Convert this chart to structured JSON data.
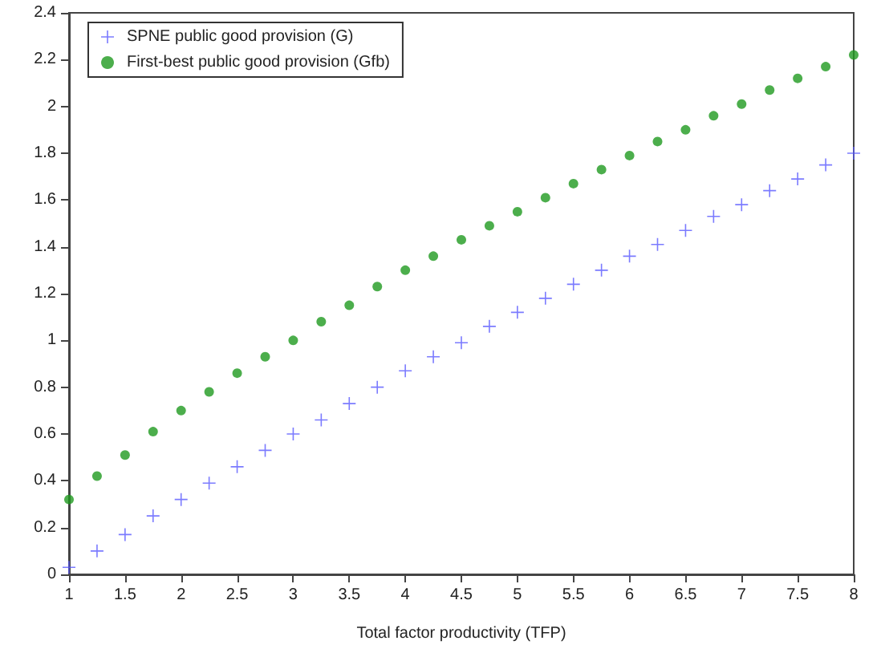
{
  "chart_data": {
    "type": "scatter",
    "xlabel": "Total factor productivity (TFP)",
    "x": [
      1,
      1.25,
      1.5,
      1.75,
      2,
      2.25,
      2.5,
      2.75,
      3,
      3.25,
      3.5,
      3.75,
      4,
      4.25,
      4.5,
      4.75,
      5,
      5.25,
      5.5,
      5.75,
      6,
      6.25,
      6.5,
      6.75,
      7,
      7.25,
      7.5,
      7.75,
      8
    ],
    "series": [
      {
        "name": "SPNE public good provision (G)",
        "color": "#5a5aff",
        "marker": "cross",
        "values": [
          0.03,
          0.1,
          0.17,
          0.25,
          0.32,
          0.39,
          0.46,
          0.53,
          0.6,
          0.66,
          0.73,
          0.8,
          0.87,
          0.93,
          0.99,
          1.06,
          1.12,
          1.18,
          1.24,
          1.3,
          1.36,
          1.41,
          1.47,
          1.53,
          1.58,
          1.64,
          1.69,
          1.75,
          1.8
        ]
      },
      {
        "name": "First-best public good provision (Gfb)",
        "color": "#1f9a1f",
        "marker": "circle",
        "values": [
          0.32,
          0.42,
          0.51,
          0.61,
          0.7,
          0.78,
          0.86,
          0.93,
          1.0,
          1.08,
          1.15,
          1.23,
          1.3,
          1.36,
          1.43,
          1.49,
          1.55,
          1.61,
          1.67,
          1.73,
          1.79,
          1.85,
          1.9,
          1.96,
          2.01,
          2.07,
          2.12,
          2.17,
          2.22
        ]
      }
    ],
    "xlim": [
      1,
      8
    ],
    "xticks": [
      1,
      1.5,
      2,
      2.5,
      3,
      3.5,
      4,
      4.5,
      5,
      5.5,
      6,
      6.5,
      7,
      7.5,
      8
    ],
    "ylim": [
      0,
      2.4
    ],
    "yticks": [
      0,
      0.2,
      0.4,
      0.6,
      0.8,
      1,
      1.2,
      1.4,
      1.6,
      1.8,
      2,
      2.2,
      2.4
    ],
    "grid": false,
    "legend": "top left"
  }
}
